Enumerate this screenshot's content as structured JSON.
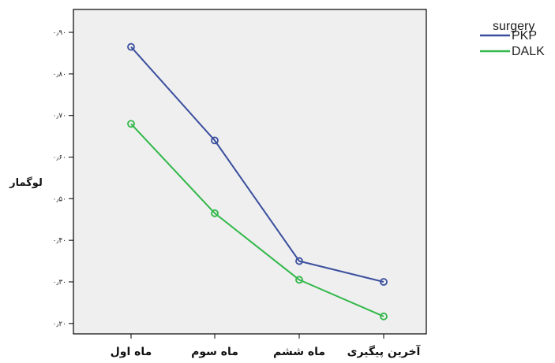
{
  "chart_data": {
    "type": "line",
    "categories": [
      "ماه اول",
      "ماه سوم",
      "ماه ششم",
      "آخرین پیگیری"
    ],
    "ylabel": "لوگمار",
    "ylim": [
      0.175,
      0.955
    ],
    "yticks": [
      0.2,
      0.3,
      0.4,
      0.5,
      0.6,
      0.7,
      0.8,
      0.9
    ],
    "ytick_labels": [
      "۰٫۲۰",
      "۰٫۳۰",
      "۰٫۴۰",
      "۰٫۵۰",
      "۰٫۶۰",
      "۰٫۷۰",
      "۰٫۸۰",
      "۰٫۹۰"
    ],
    "grid": false,
    "legend": {
      "title": "surgery",
      "placement": "top-right"
    },
    "series": [
      {
        "name": "PKP",
        "color": "#3a4f9e",
        "values": [
          0.865,
          0.64,
          0.35,
          0.3
        ]
      },
      {
        "name": "DALK",
        "color": "#33b84a",
        "values": [
          0.68,
          0.465,
          0.305,
          0.217
        ]
      }
    ],
    "plot_background": "#efefef"
  }
}
